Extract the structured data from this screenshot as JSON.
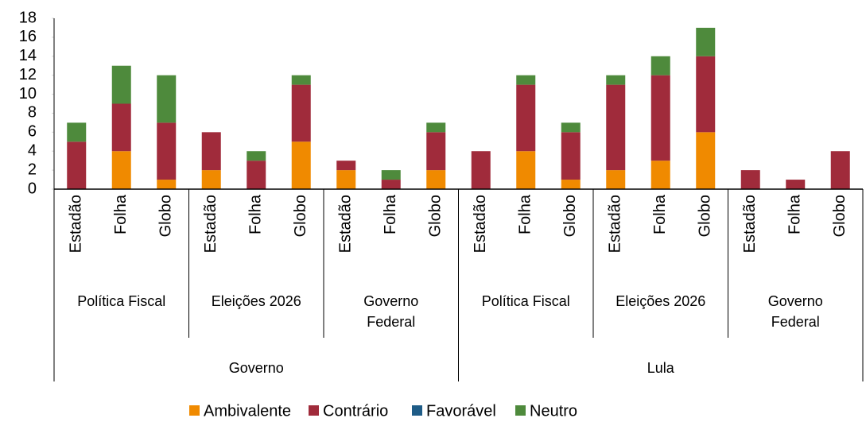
{
  "chart_data": {
    "type": "bar",
    "stacked": true,
    "categories": [
      "Estadão",
      "Folha",
      "Globo",
      "Estadão",
      "Folha",
      "Globo",
      "Estadão",
      "Folha",
      "Globo",
      "Estadão",
      "Folha",
      "Globo",
      "Estadão",
      "Folha",
      "Globo",
      "Estadão",
      "Folha",
      "Globo"
    ],
    "groups": [
      "Política Fiscal",
      "Eleições 2026",
      "Governo Federal",
      "Política Fiscal",
      "Eleições 2026",
      "Governo Federal"
    ],
    "supergroups": [
      "Governo",
      "Lula"
    ],
    "series": [
      {
        "name": "Ambivalente",
        "color": "#f08a00",
        "values": [
          0,
          4,
          1,
          2,
          0,
          5,
          2,
          0,
          2,
          0,
          4,
          1,
          2,
          3,
          6,
          0,
          0,
          0
        ]
      },
      {
        "name": "Contrário",
        "color": "#a02b3b",
        "values": [
          5,
          5,
          6,
          4,
          3,
          6,
          1,
          1,
          4,
          4,
          7,
          5,
          9,
          9,
          8,
          2,
          1,
          4
        ]
      },
      {
        "name": "Favorável",
        "color": "#1f5c87",
        "values": [
          0,
          0,
          0,
          0,
          0,
          0,
          0,
          0,
          0,
          0,
          0,
          0,
          0,
          0,
          0,
          0,
          0,
          0
        ]
      },
      {
        "name": "Neutro",
        "color": "#4e8a3c",
        "values": [
          2,
          4,
          5,
          0,
          1,
          1,
          0,
          1,
          1,
          0,
          1,
          1,
          1,
          2,
          3,
          0,
          0,
          0
        ]
      }
    ],
    "ylim": [
      0,
      18
    ],
    "yticks": [
      0,
      2,
      4,
      6,
      8,
      10,
      12,
      14,
      16,
      18
    ],
    "grid": false,
    "legend": "bottom"
  }
}
